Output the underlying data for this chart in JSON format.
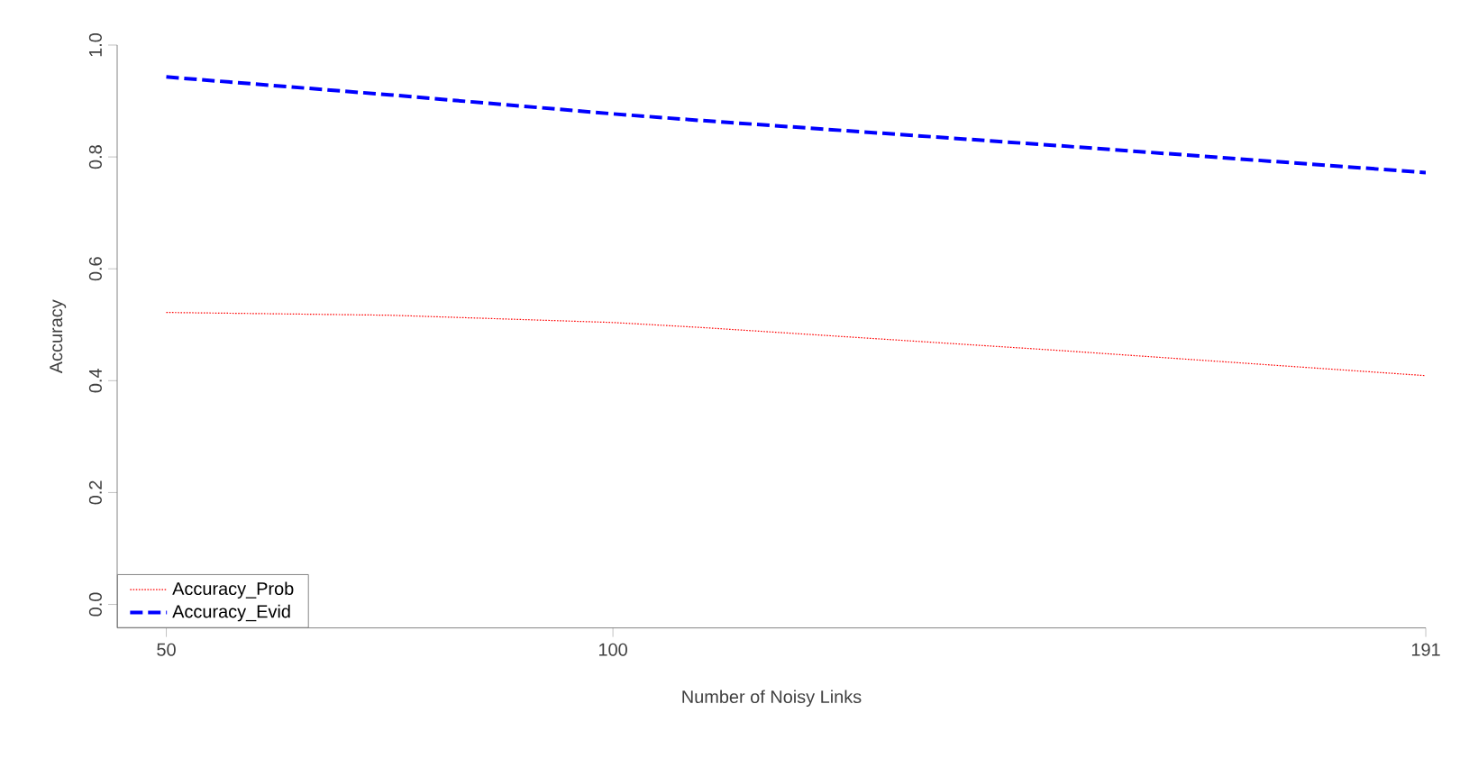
{
  "chart_data": {
    "type": "line",
    "xlabel": "Number of Noisy Links",
    "ylabel": "Accuracy",
    "x": [
      50,
      75,
      100,
      110,
      150,
      191
    ],
    "series": [
      {
        "name": "Accuracy_Prob",
        "color": "#ff0000",
        "line_style": "dotted",
        "values": [
          0.522,
          0.517,
          0.504,
          0.495,
          0.454,
          0.409
        ]
      },
      {
        "name": "Accuracy_Evid",
        "color": "#0000ff",
        "line_style": "dashed",
        "values": [
          0.943,
          0.911,
          0.877,
          0.865,
          0.82,
          0.772
        ]
      }
    ],
    "xlim": [
      44.5,
      191
    ],
    "ylim": [
      -0.042,
      1.0
    ],
    "xticks": [
      50,
      100,
      191
    ],
    "yticks": [
      {
        "value": 0,
        "label": "0.0"
      },
      0.2,
      0.4,
      0.6,
      0.8,
      {
        "value": 1,
        "label": "1.0"
      }
    ],
    "grid": false,
    "legend": "bottom left"
  }
}
